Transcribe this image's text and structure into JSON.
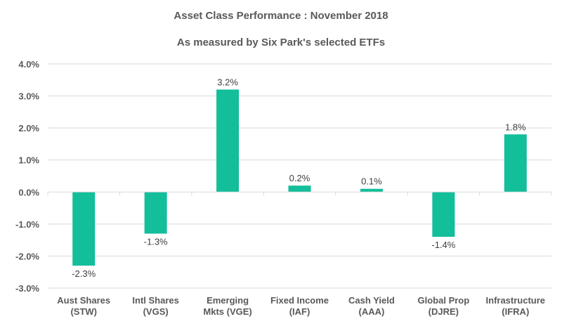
{
  "chart_data": {
    "type": "bar",
    "title": "Asset Class Performance : November 2018",
    "subtitle": "As measured by Six Park's selected ETFs",
    "categories": [
      [
        "Aust Shares",
        "(STW)"
      ],
      [
        "Intl Shares",
        "(VGS)"
      ],
      [
        "Emerging",
        "Mkts (VGE)"
      ],
      [
        "Fixed Income",
        "(IAF)"
      ],
      [
        "Cash Yield",
        "(AAA)"
      ],
      [
        "Global Prop",
        "(DJRE)"
      ],
      [
        "Infrastructure",
        "(IFRA)"
      ]
    ],
    "values": [
      -2.3,
      -1.3,
      3.2,
      0.2,
      0.1,
      -1.4,
      1.8
    ],
    "data_labels": [
      "-2.3%",
      "-1.3%",
      "3.2%",
      "0.2%",
      "0.1%",
      "-1.4%",
      "1.8%"
    ],
    "ylim": [
      -3,
      4
    ],
    "yticks": [
      "-3.0%",
      "-2.0%",
      "-1.0%",
      "0.0%",
      "1.0%",
      "2.0%",
      "3.0%",
      "4.0%"
    ],
    "grid": true,
    "bar_color": "#13BE9A"
  }
}
